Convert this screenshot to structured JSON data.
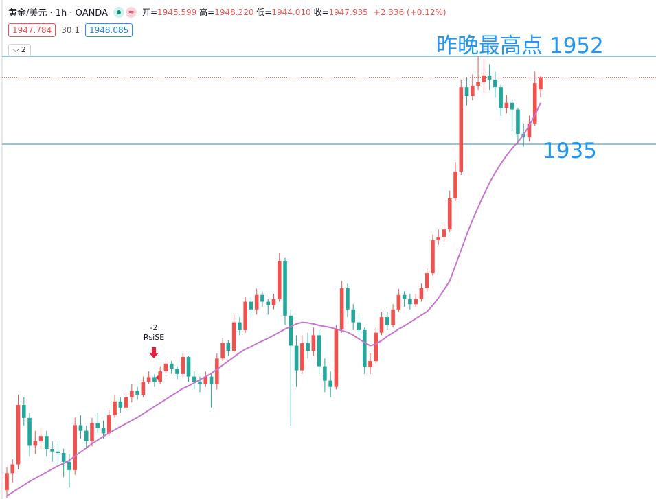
{
  "header": {
    "symbol": "黄金/美元 · 1h · OANDA",
    "ohlc": [
      {
        "label": "开=",
        "value": "1945.599"
      },
      {
        "label": "高=",
        "value": "1948.220"
      },
      {
        "label": "低=",
        "value": "1944.010"
      },
      {
        "label": "收=",
        "value": "1947.935"
      }
    ],
    "change": "+2.336 (+0.12%)",
    "bid": "1947.784",
    "spread": "30.1",
    "ask": "1948.085",
    "indicators": "2"
  },
  "chart_data": {
    "type": "candlestick",
    "ylim": [
      1866.3,
      1962.9
    ],
    "up_color": "#ef5350",
    "down_color": "#26a69a",
    "candles": [
      [
        1868.0,
        1872.5,
        1866.5,
        1871.3
      ],
      [
        1871.3,
        1874.0,
        1869.5,
        1873.0
      ],
      [
        1873.0,
        1886.5,
        1872.0,
        1884.5
      ],
      [
        1884.5,
        1886.0,
        1880.5,
        1882.0
      ],
      [
        1882.0,
        1883.0,
        1874.5,
        1876.6
      ],
      [
        1876.6,
        1879.5,
        1875.0,
        1877.5
      ],
      [
        1877.5,
        1880.0,
        1876.0,
        1878.5
      ],
      [
        1878.5,
        1879.5,
        1874.5,
        1876.0
      ],
      [
        1876.0,
        1877.5,
        1873.5,
        1875.5
      ],
      [
        1875.5,
        1877.0,
        1873.0,
        1875.2
      ],
      [
        1875.2,
        1876.0,
        1870.5,
        1873.5
      ],
      [
        1873.5,
        1875.0,
        1868.5,
        1871.9
      ],
      [
        1871.9,
        1882.0,
        1871.0,
        1880.6
      ],
      [
        1880.6,
        1882.5,
        1878.0,
        1879.5
      ],
      [
        1879.5,
        1880.5,
        1876.0,
        1877.5
      ],
      [
        1877.5,
        1882.0,
        1876.5,
        1881.0
      ],
      [
        1881.0,
        1883.0,
        1879.0,
        1880.0
      ],
      [
        1880.0,
        1881.5,
        1878.0,
        1879.0
      ],
      [
        1879.0,
        1883.5,
        1878.5,
        1882.5
      ],
      [
        1882.5,
        1886.5,
        1882.0,
        1885.2
      ],
      [
        1885.2,
        1886.0,
        1883.0,
        1884.0
      ],
      [
        1884.0,
        1887.0,
        1883.5,
        1886.0
      ],
      [
        1886.0,
        1888.5,
        1885.0,
        1887.2
      ],
      [
        1887.2,
        1888.0,
        1885.5,
        1886.5
      ],
      [
        1886.5,
        1890.0,
        1886.0,
        1889.0
      ],
      [
        1889.0,
        1891.0,
        1888.5,
        1889.9
      ],
      [
        1889.9,
        1890.5,
        1888.0,
        1889.0
      ],
      [
        1889.0,
        1892.0,
        1888.5,
        1891.0
      ],
      [
        1891.0,
        1893.0,
        1890.5,
        1892.5
      ],
      [
        1892.5,
        1893.0,
        1890.5,
        1891.5
      ],
      [
        1891.5,
        1892.0,
        1889.5,
        1890.5
      ],
      [
        1890.5,
        1894.5,
        1890.0,
        1893.8
      ],
      [
        1893.8,
        1894.0,
        1889.0,
        1890.0
      ],
      [
        1890.0,
        1891.0,
        1887.5,
        1889.0
      ],
      [
        1889.0,
        1890.0,
        1887.0,
        1888.5
      ],
      [
        1888.5,
        1891.0,
        1888.0,
        1890.0
      ],
      [
        1890.0,
        1890.5,
        1884.0,
        1888.5
      ],
      [
        1888.5,
        1894.5,
        1887.5,
        1893.5
      ],
      [
        1893.5,
        1897.5,
        1893.0,
        1896.5
      ],
      [
        1896.5,
        1897.0,
        1894.0,
        1895.0
      ],
      [
        1895.0,
        1902.0,
        1894.5,
        1900.5
      ],
      [
        1900.5,
        1901.5,
        1898.0,
        1899.0
      ],
      [
        1899.0,
        1905.5,
        1898.5,
        1904.5
      ],
      [
        1904.5,
        1905.5,
        1901.5,
        1903.0
      ],
      [
        1903.0,
        1907.0,
        1902.0,
        1905.8
      ],
      [
        1905.8,
        1906.5,
        1903.5,
        1904.5
      ],
      [
        1904.5,
        1905.0,
        1902.0,
        1903.8
      ],
      [
        1903.8,
        1906.0,
        1903.0,
        1905.0
      ],
      [
        1905.0,
        1914.0,
        1904.5,
        1912.4
      ],
      [
        1912.4,
        1913.0,
        1900.0,
        1901.8
      ],
      [
        1901.8,
        1903.0,
        1880.5,
        1896.0
      ],
      [
        1896.0,
        1898.0,
        1888.0,
        1891.2
      ],
      [
        1891.2,
        1898.0,
        1890.5,
        1896.5
      ],
      [
        1896.5,
        1898.5,
        1893.5,
        1895.0
      ],
      [
        1895.0,
        1899.5,
        1894.0,
        1898.0
      ],
      [
        1898.0,
        1899.0,
        1890.5,
        1892.0
      ],
      [
        1892.0,
        1893.5,
        1887.0,
        1889.2
      ],
      [
        1889.2,
        1891.0,
        1886.0,
        1888.0
      ],
      [
        1888.0,
        1900.0,
        1887.5,
        1899.2
      ],
      [
        1899.2,
        1908.5,
        1898.5,
        1907.1
      ],
      [
        1907.1,
        1908.0,
        1901.5,
        1903.0
      ],
      [
        1903.0,
        1904.0,
        1899.0,
        1900.5
      ],
      [
        1900.5,
        1902.0,
        1897.5,
        1899.0
      ],
      [
        1899.0,
        1899.5,
        1890.5,
        1891.9
      ],
      [
        1891.9,
        1894.5,
        1890.5,
        1893.0
      ],
      [
        1893.0,
        1899.5,
        1892.5,
        1898.5
      ],
      [
        1898.5,
        1902.5,
        1898.0,
        1901.5
      ],
      [
        1901.5,
        1902.5,
        1899.0,
        1900.0
      ],
      [
        1900.0,
        1904.0,
        1899.5,
        1903.0
      ],
      [
        1903.0,
        1907.0,
        1902.5,
        1905.8
      ],
      [
        1905.8,
        1906.5,
        1903.5,
        1905.0
      ],
      [
        1905.0,
        1906.0,
        1903.0,
        1904.0
      ],
      [
        1904.0,
        1906.0,
        1903.5,
        1905.0
      ],
      [
        1905.0,
        1908.0,
        1904.5,
        1907.1
      ],
      [
        1907.1,
        1911.0,
        1906.5,
        1910.0
      ],
      [
        1910.0,
        1917.5,
        1909.5,
        1916.4
      ],
      [
        1916.4,
        1918.5,
        1915.5,
        1917.0
      ],
      [
        1917.0,
        1919.5,
        1916.0,
        1918.5
      ],
      [
        1918.5,
        1926.0,
        1918.0,
        1924.5
      ],
      [
        1924.5,
        1931.5,
        1924.0,
        1929.7
      ],
      [
        1929.7,
        1947.5,
        1929.0,
        1946.0
      ],
      [
        1946.0,
        1948.0,
        1942.5,
        1944.3
      ],
      [
        1944.3,
        1948.5,
        1943.5,
        1946.3
      ],
      [
        1946.3,
        1952.0,
        1945.5,
        1947.0
      ],
      [
        1947.0,
        1951.5,
        1945.0,
        1948.3
      ],
      [
        1948.3,
        1950.5,
        1945.5,
        1947.5
      ],
      [
        1947.5,
        1949.0,
        1944.0,
        1946.0
      ],
      [
        1946.0,
        1946.5,
        1940.5,
        1942.0
      ],
      [
        1942.0,
        1944.5,
        1941.0,
        1943.0
      ],
      [
        1943.0,
        1943.5,
        1937.5,
        1941.7
      ],
      [
        1941.7,
        1942.0,
        1935.0,
        1937.0
      ],
      [
        1937.0,
        1939.0,
        1934.5,
        1936.3
      ],
      [
        1936.3,
        1940.5,
        1935.5,
        1939.0
      ],
      [
        1939.0,
        1949.0,
        1938.5,
        1946.8
      ],
      [
        1945.599,
        1948.22,
        1944.01,
        1947.935
      ]
    ],
    "ma": {
      "color": "#c774d0",
      "values": [
        1866.9,
        1867.6,
        1868.3,
        1869.0,
        1869.7,
        1870.3,
        1870.9,
        1871.5,
        1872.1,
        1872.7,
        1873.2,
        1873.8,
        1874.6,
        1875.4,
        1876.2,
        1877.0,
        1877.7,
        1878.4,
        1879.1,
        1879.7,
        1880.3,
        1880.9,
        1881.5,
        1882.1,
        1882.8,
        1883.5,
        1884.2,
        1884.9,
        1885.6,
        1886.3,
        1887.0,
        1887.7,
        1888.2,
        1888.8,
        1889.4,
        1890.0,
        1890.6,
        1891.4,
        1892.2,
        1893.0,
        1893.8,
        1894.6,
        1895.3,
        1895.8,
        1896.4,
        1896.9,
        1897.4,
        1898.0,
        1898.6,
        1899.2,
        1899.7,
        1900.2,
        1900.5,
        1900.4,
        1900.2,
        1899.9,
        1899.7,
        1899.5,
        1899.2,
        1898.9,
        1898.6,
        1898.0,
        1897.3,
        1896.6,
        1896.0,
        1896.3,
        1897.0,
        1897.8,
        1898.5,
        1899.2,
        1899.8,
        1900.5,
        1901.2,
        1901.9,
        1902.6,
        1903.8,
        1905.2,
        1906.8,
        1908.5,
        1911.5,
        1914.5,
        1917.5,
        1920.3,
        1922.8,
        1925.2,
        1927.5,
        1929.5,
        1931.2,
        1932.8,
        1934.2,
        1935.4,
        1936.8,
        1938.6,
        1940.6,
        1943.0
      ]
    },
    "hlines": [
      {
        "value": 1952,
        "label": "昨晚最高点 1952"
      },
      {
        "value": 1935,
        "label": "1935"
      }
    ],
    "hline_color": "#2a8bbf",
    "label_color": "#2196f3",
    "annotation": [
      "-2",
      "RsiSE"
    ]
  }
}
